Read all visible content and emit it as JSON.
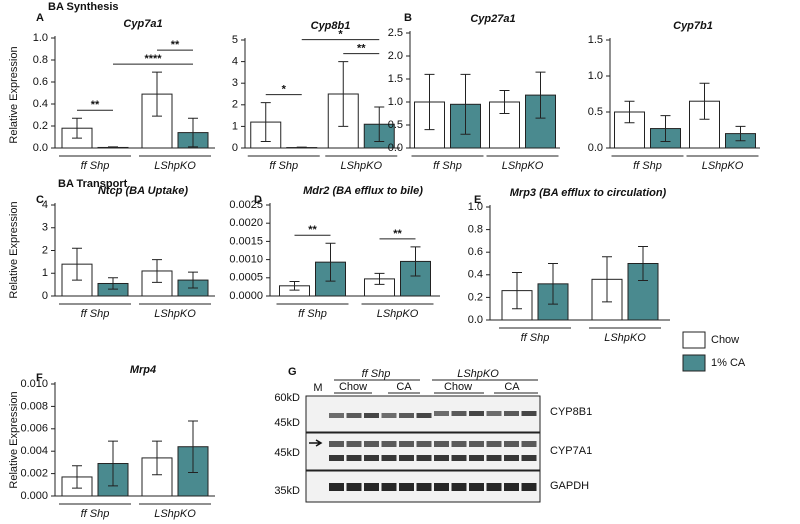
{
  "figure": {
    "sections": [
      "BA Synthesis",
      "BA Transport"
    ],
    "letters": [
      "A",
      "B",
      "C",
      "D",
      "E",
      "F",
      "G"
    ],
    "y_label": "Relative Expression"
  },
  "chart_data": [
    {
      "type": "bar",
      "title": "Cyp7a1",
      "categories": [
        "ff Shp",
        "LShpKO"
      ],
      "series": [
        {
          "name": "Chow",
          "color": "#ffffff",
          "values": [
            0.18,
            0.49
          ],
          "errors": [
            0.09,
            0.2
          ]
        },
        {
          "name": "1% CA",
          "color": "#4a8a8f",
          "values": [
            0.005,
            0.14
          ],
          "errors": [
            0.005,
            0.13
          ]
        }
      ],
      "ylim": [
        0,
        1.0
      ],
      "yticks": [
        {
          "value": 0,
          "label": "0.0"
        },
        0.2,
        0.4,
        0.6,
        0.8,
        {
          "value": 1.0,
          "label": "1.0"
        }
      ],
      "significance": [
        {
          "label": "**",
          "pair": [
            [
              0,
              0
            ],
            [
              0,
              1
            ]
          ]
        },
        {
          "label": "****",
          "pair": [
            [
              0,
              1
            ],
            [
              1,
              1
            ]
          ]
        },
        {
          "label": "**",
          "pair": [
            [
              1,
              0
            ],
            [
              1,
              1
            ]
          ]
        }
      ]
    },
    {
      "type": "bar",
      "title": "Cyp8b1",
      "categories": [
        "ff Shp",
        "LShpKO"
      ],
      "series": [
        {
          "name": "Chow",
          "color": "#ffffff",
          "values": [
            1.2,
            2.5
          ],
          "errors": [
            0.9,
            1.5
          ]
        },
        {
          "name": "1% CA",
          "color": "#4a8a8f",
          "values": [
            0.02,
            1.1
          ],
          "errors": [
            0.02,
            0.8
          ]
        }
      ],
      "ylim": [
        0,
        5
      ],
      "yticks": [
        0,
        1,
        2,
        3,
        4,
        5
      ],
      "significance": [
        {
          "label": "*",
          "pair": [
            [
              0,
              0
            ],
            [
              0,
              1
            ]
          ]
        },
        {
          "label": "**",
          "pair": [
            [
              1,
              0
            ],
            [
              1,
              1
            ]
          ]
        },
        {
          "label": "*",
          "pair": [
            [
              0,
              1
            ],
            [
              1,
              1
            ]
          ]
        }
      ]
    },
    {
      "type": "bar",
      "title": "Cyp27a1",
      "categories": [
        "ff Shp",
        "LShpKO"
      ],
      "series": [
        {
          "name": "Chow",
          "color": "#ffffff",
          "values": [
            1.0,
            1.0
          ],
          "errors": [
            0.6,
            0.25
          ]
        },
        {
          "name": "1% CA",
          "color": "#4a8a8f",
          "values": [
            0.95,
            1.15
          ],
          "errors": [
            0.65,
            0.5
          ]
        }
      ],
      "ylim": [
        0,
        2.5
      ],
      "yticks": [
        {
          "value": 0,
          "label": "0.0"
        },
        0.5,
        {
          "value": 1.0,
          "label": "1.0"
        },
        1.5,
        {
          "value": 2.0,
          "label": "2.0"
        },
        2.5
      ],
      "significance": []
    },
    {
      "type": "bar",
      "title": "Cyp7b1",
      "categories": [
        "ff Shp",
        "LShpKO"
      ],
      "series": [
        {
          "name": "Chow",
          "color": "#ffffff",
          "values": [
            0.5,
            0.65
          ],
          "errors": [
            0.15,
            0.25
          ]
        },
        {
          "name": "1% CA",
          "color": "#4a8a8f",
          "values": [
            0.27,
            0.2
          ],
          "errors": [
            0.18,
            0.1
          ]
        }
      ],
      "ylim": [
        0,
        1.5
      ],
      "yticks": [
        {
          "value": 0,
          "label": "0.0"
        },
        0.5,
        {
          "value": 1.0,
          "label": "1.0"
        },
        1.5
      ],
      "significance": []
    },
    {
      "type": "bar",
      "title": "Ntcp (BA Uptake)",
      "categories": [
        "ff Shp",
        "LShpKO"
      ],
      "series": [
        {
          "name": "Chow",
          "color": "#ffffff",
          "values": [
            1.4,
            1.1
          ],
          "errors": [
            0.7,
            0.5
          ]
        },
        {
          "name": "1% CA",
          "color": "#4a8a8f",
          "values": [
            0.55,
            0.7
          ],
          "errors": [
            0.25,
            0.35
          ]
        }
      ],
      "ylim": [
        0,
        4
      ],
      "yticks": [
        0,
        1,
        2,
        3,
        4
      ],
      "significance": []
    },
    {
      "type": "bar",
      "title": "Mdr2 (BA efflux to bile)",
      "categories": [
        "ff Shp",
        "LShpKO"
      ],
      "series": [
        {
          "name": "Chow",
          "color": "#ffffff",
          "values": [
            0.00028,
            0.00047
          ],
          "errors": [
            0.00012,
            0.00015
          ]
        },
        {
          "name": "1% CA",
          "color": "#4a8a8f",
          "values": [
            0.00093,
            0.00095
          ],
          "errors": [
            0.00052,
            0.0004
          ]
        }
      ],
      "ylim": [
        0,
        0.0025
      ],
      "yticks": [
        {
          "value": 0,
          "label": "0.0000"
        },
        {
          "value": 0.0005,
          "label": "0.0005"
        },
        {
          "value": 0.001,
          "label": "0.0010"
        },
        {
          "value": 0.0015,
          "label": "0.0015"
        },
        {
          "value": 0.002,
          "label": "0.0020"
        },
        {
          "value": 0.0025,
          "label": "0.0025"
        }
      ],
      "significance": [
        {
          "label": "**",
          "pair": [
            [
              0,
              0
            ],
            [
              0,
              1
            ]
          ]
        },
        {
          "label": "**",
          "pair": [
            [
              1,
              0
            ],
            [
              1,
              1
            ]
          ]
        }
      ]
    },
    {
      "type": "bar",
      "title": "Mrp3 (BA efflux to circulation)",
      "categories": [
        "ff Shp",
        "LShpKO"
      ],
      "series": [
        {
          "name": "Chow",
          "color": "#ffffff",
          "values": [
            0.26,
            0.36
          ],
          "errors": [
            0.16,
            0.2
          ]
        },
        {
          "name": "1% CA",
          "color": "#4a8a8f",
          "values": [
            0.32,
            0.5
          ],
          "errors": [
            0.18,
            0.15
          ]
        }
      ],
      "ylim": [
        0,
        1.0
      ],
      "yticks": [
        {
          "value": 0,
          "label": "0.0"
        },
        0.2,
        0.4,
        0.6,
        0.8,
        {
          "value": 1.0,
          "label": "1.0"
        }
      ],
      "significance": []
    },
    {
      "type": "bar",
      "title": "Mrp4",
      "categories": [
        "ff Shp",
        "LShpKO"
      ],
      "series": [
        {
          "name": "Chow",
          "color": "#ffffff",
          "values": [
            0.0017,
            0.0034
          ],
          "errors": [
            0.001,
            0.0015
          ]
        },
        {
          "name": "1% CA",
          "color": "#4a8a8f",
          "values": [
            0.0029,
            0.0044
          ],
          "errors": [
            0.002,
            0.0023
          ]
        }
      ],
      "ylim": [
        0,
        0.01
      ],
      "yticks": [
        {
          "value": 0,
          "label": "0.000"
        },
        0.002,
        0.004,
        0.006,
        0.008,
        {
          "value": 0.01,
          "label": "0.010"
        }
      ],
      "significance": []
    }
  ],
  "blot": {
    "groups": [
      "ff Shp",
      "LShpKO"
    ],
    "conditions": [
      "Chow",
      "CA",
      "Chow",
      "CA"
    ],
    "marker_lane": "M",
    "markers": [
      "60kD",
      "45kD",
      "45kD",
      "35kD"
    ],
    "proteins": [
      "CYP8B1",
      "CYP7A1",
      "GAPDH"
    ]
  }
}
